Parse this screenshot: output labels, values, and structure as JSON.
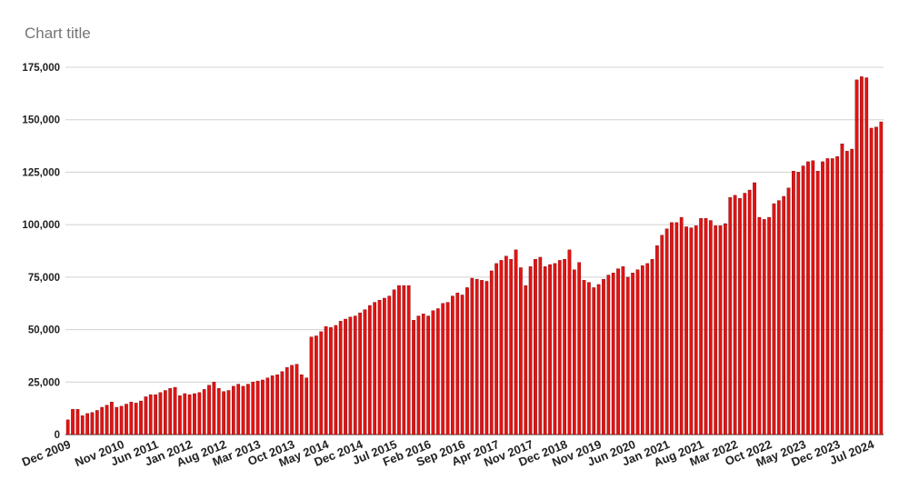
{
  "chart_data": {
    "type": "bar",
    "title": "Chart title",
    "xlabel": "",
    "ylabel": "",
    "ylim": [
      0,
      175000
    ],
    "y_ticks": [
      0,
      25000,
      50000,
      75000,
      100000,
      125000,
      150000,
      175000
    ],
    "y_tick_labels": [
      "0",
      "25,000",
      "50,000",
      "75,000",
      "100,000",
      "125,000",
      "150,000",
      "175,000"
    ],
    "x_tick_labels": [
      "Dec 2009",
      "Nov 2010",
      "Jun 2011",
      "Jan 2012",
      "Aug 2012",
      "Mar 2013",
      "Oct 2013",
      "May 2014",
      "Dec 2014",
      "Jul 2015",
      "Feb 2016",
      "Sep 2016",
      "Apr 2017",
      "Nov 2017",
      "Dec 2018",
      "Nov 2019",
      "Jun 2020",
      "Jan 2021",
      "Aug 2021",
      "Mar 2022",
      "Oct 2022",
      "May 2023",
      "Dec 2023",
      "Jul 2024"
    ],
    "x_tick_index": [
      0,
      11,
      18,
      25,
      32,
      39,
      46,
      53,
      60,
      67,
      74,
      81,
      88,
      95,
      102,
      109,
      116,
      123,
      130,
      137,
      144,
      151,
      158,
      165
    ],
    "grid": true,
    "bar_color": "#e31313",
    "bar_edge_color": "#7a0000",
    "values": [
      7000,
      12000,
      12000,
      9000,
      10000,
      10500,
      11500,
      13000,
      14000,
      15500,
      13000,
      13500,
      14500,
      15500,
      15000,
      16000,
      18000,
      19000,
      19000,
      20000,
      21000,
      22000,
      22500,
      18500,
      19500,
      19000,
      19500,
      20000,
      21500,
      23500,
      25000,
      22000,
      20500,
      21000,
      23000,
      24000,
      23000,
      24000,
      25000,
      25500,
      26000,
      27000,
      28000,
      28500,
      30000,
      32000,
      33000,
      33500,
      28500,
      27000,
      46500,
      47000,
      49000,
      51500,
      51000,
      52000,
      54000,
      55000,
      56000,
      56500,
      58000,
      59500,
      61500,
      63000,
      64000,
      65000,
      66000,
      69000,
      71000,
      71000,
      71000,
      54500,
      56500,
      57500,
      56500,
      59000,
      60000,
      62500,
      63000,
      66000,
      67500,
      66500,
      70000,
      74500,
      74000,
      73500,
      73000,
      78000,
      81500,
      83000,
      85000,
      83500,
      88000,
      79500,
      71000,
      80000,
      83500,
      84500,
      80000,
      81000,
      81500,
      83000,
      83500,
      88000,
      78500,
      82000,
      73500,
      72500,
      70000,
      71500,
      74000,
      76000,
      77000,
      79000,
      80000,
      75000,
      77000,
      78500,
      80500,
      81500,
      83500,
      90000,
      95000,
      98000,
      101000,
      101000,
      103500,
      99000,
      98500,
      99500,
      103000,
      103000,
      102000,
      99500,
      99500,
      100500,
      113000,
      114000,
      112500,
      115000,
      116500,
      120000,
      103500,
      102500,
      103500,
      110000,
      111500,
      113500,
      117500,
      125500,
      125000,
      128000,
      130000,
      130500,
      125500,
      130000,
      131500,
      131500,
      132500,
      138500,
      135000,
      136000,
      169000,
      170500,
      170000,
      146000,
      146500,
      149000
    ]
  }
}
